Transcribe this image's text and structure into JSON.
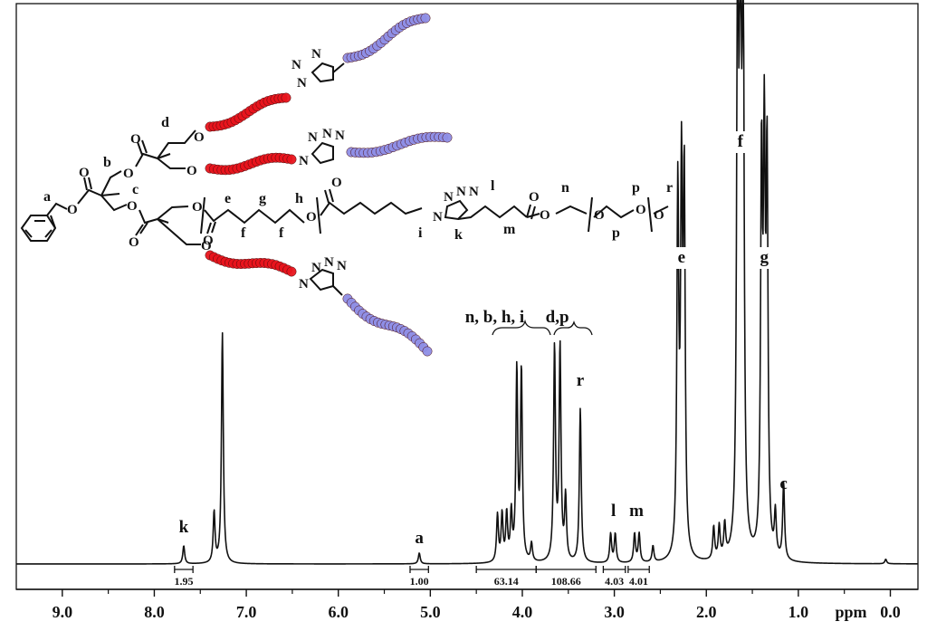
{
  "chart_data": {
    "type": "line",
    "title": "",
    "xlabel": "ppm",
    "ylabel": "",
    "x_reversed": true,
    "xlim": [
      9.5,
      -0.3
    ],
    "x_ticks": [
      9.0,
      8.0,
      7.0,
      6.0,
      5.0,
      4.0,
      3.0,
      2.0,
      1.0,
      0.0
    ],
    "x_tick_labels": [
      "9.0",
      "8.0",
      "7.0",
      "6.0",
      "5.0",
      "4.0",
      "3.0",
      "2.0",
      "1.0",
      "0.0"
    ],
    "grid": false,
    "peaks": [
      {
        "ppm": 7.68,
        "height": 20
      },
      {
        "ppm": 7.35,
        "height": 56
      },
      {
        "ppm": 7.26,
        "height": 255
      },
      {
        "ppm": 5.12,
        "height": 12
      },
      {
        "ppm": 4.27,
        "height": 52
      },
      {
        "ppm": 4.22,
        "height": 52
      },
      {
        "ppm": 4.17,
        "height": 52
      },
      {
        "ppm": 4.12,
        "height": 52
      },
      {
        "ppm": 4.06,
        "height": 210
      },
      {
        "ppm": 4.01,
        "height": 210
      },
      {
        "ppm": 3.9,
        "height": 20
      },
      {
        "ppm": 3.65,
        "height": 236
      },
      {
        "ppm": 3.59,
        "height": 236
      },
      {
        "ppm": 3.53,
        "height": 70
      },
      {
        "ppm": 3.37,
        "height": 170
      },
      {
        "ppm": 3.04,
        "height": 32
      },
      {
        "ppm": 2.99,
        "height": 32
      },
      {
        "ppm": 2.78,
        "height": 32
      },
      {
        "ppm": 2.73,
        "height": 32
      },
      {
        "ppm": 2.58,
        "height": 18
      },
      {
        "ppm": 2.31,
        "height": 400
      },
      {
        "ppm": 2.27,
        "height": 400
      },
      {
        "ppm": 2.24,
        "height": 400
      },
      {
        "ppm": 1.92,
        "height": 36
      },
      {
        "ppm": 1.86,
        "height": 36
      },
      {
        "ppm": 1.8,
        "height": 36
      },
      {
        "ppm": 1.66,
        "height": 640
      },
      {
        "ppm": 1.63,
        "height": 640
      },
      {
        "ppm": 1.6,
        "height": 640
      },
      {
        "ppm": 1.4,
        "height": 420
      },
      {
        "ppm": 1.37,
        "height": 420
      },
      {
        "ppm": 1.34,
        "height": 420
      },
      {
        "ppm": 1.25,
        "height": 48
      },
      {
        "ppm": 1.16,
        "height": 85
      },
      {
        "ppm": 0.05,
        "height": 5
      }
    ],
    "peak_labels": [
      {
        "ppm": 7.68,
        "text": "k"
      },
      {
        "ppm": 5.12,
        "text": "a"
      },
      {
        "ppm": 4.3,
        "text": "n, b, h, i"
      },
      {
        "ppm": 3.62,
        "text": "d,p"
      },
      {
        "ppm": 3.37,
        "text": "r"
      },
      {
        "ppm": 3.01,
        "text": "l"
      },
      {
        "ppm": 2.76,
        "text": "m"
      },
      {
        "ppm": 2.27,
        "text": "e"
      },
      {
        "ppm": 1.63,
        "text": "f"
      },
      {
        "ppm": 1.37,
        "text": "g"
      },
      {
        "ppm": 1.16,
        "text": "c"
      }
    ],
    "integrals": [
      {
        "from": 7.78,
        "to": 7.58,
        "value": "1.95"
      },
      {
        "from": 5.22,
        "to": 5.02,
        "value": "1.00"
      },
      {
        "from": 4.5,
        "to": 3.85,
        "value": "63.14"
      },
      {
        "from": 3.85,
        "to": 3.2,
        "value": "108.66"
      },
      {
        "from": 3.12,
        "to": 2.88,
        "value": "4.03"
      },
      {
        "from": 2.85,
        "to": 2.62,
        "value": "4.01"
      }
    ]
  },
  "structure": {
    "position_labels": [
      "a",
      "b",
      "c",
      "d",
      "e",
      "f",
      "g",
      "f",
      "h",
      "i",
      "k",
      "l",
      "m",
      "n",
      "p",
      "p",
      "r"
    ],
    "atoms": {
      "oxygen": "O",
      "nitrogen": "N"
    },
    "colors": {
      "pcl_block": "#e8141c",
      "peg_block": "#8e8ee6",
      "spectrum": "#111111"
    }
  }
}
